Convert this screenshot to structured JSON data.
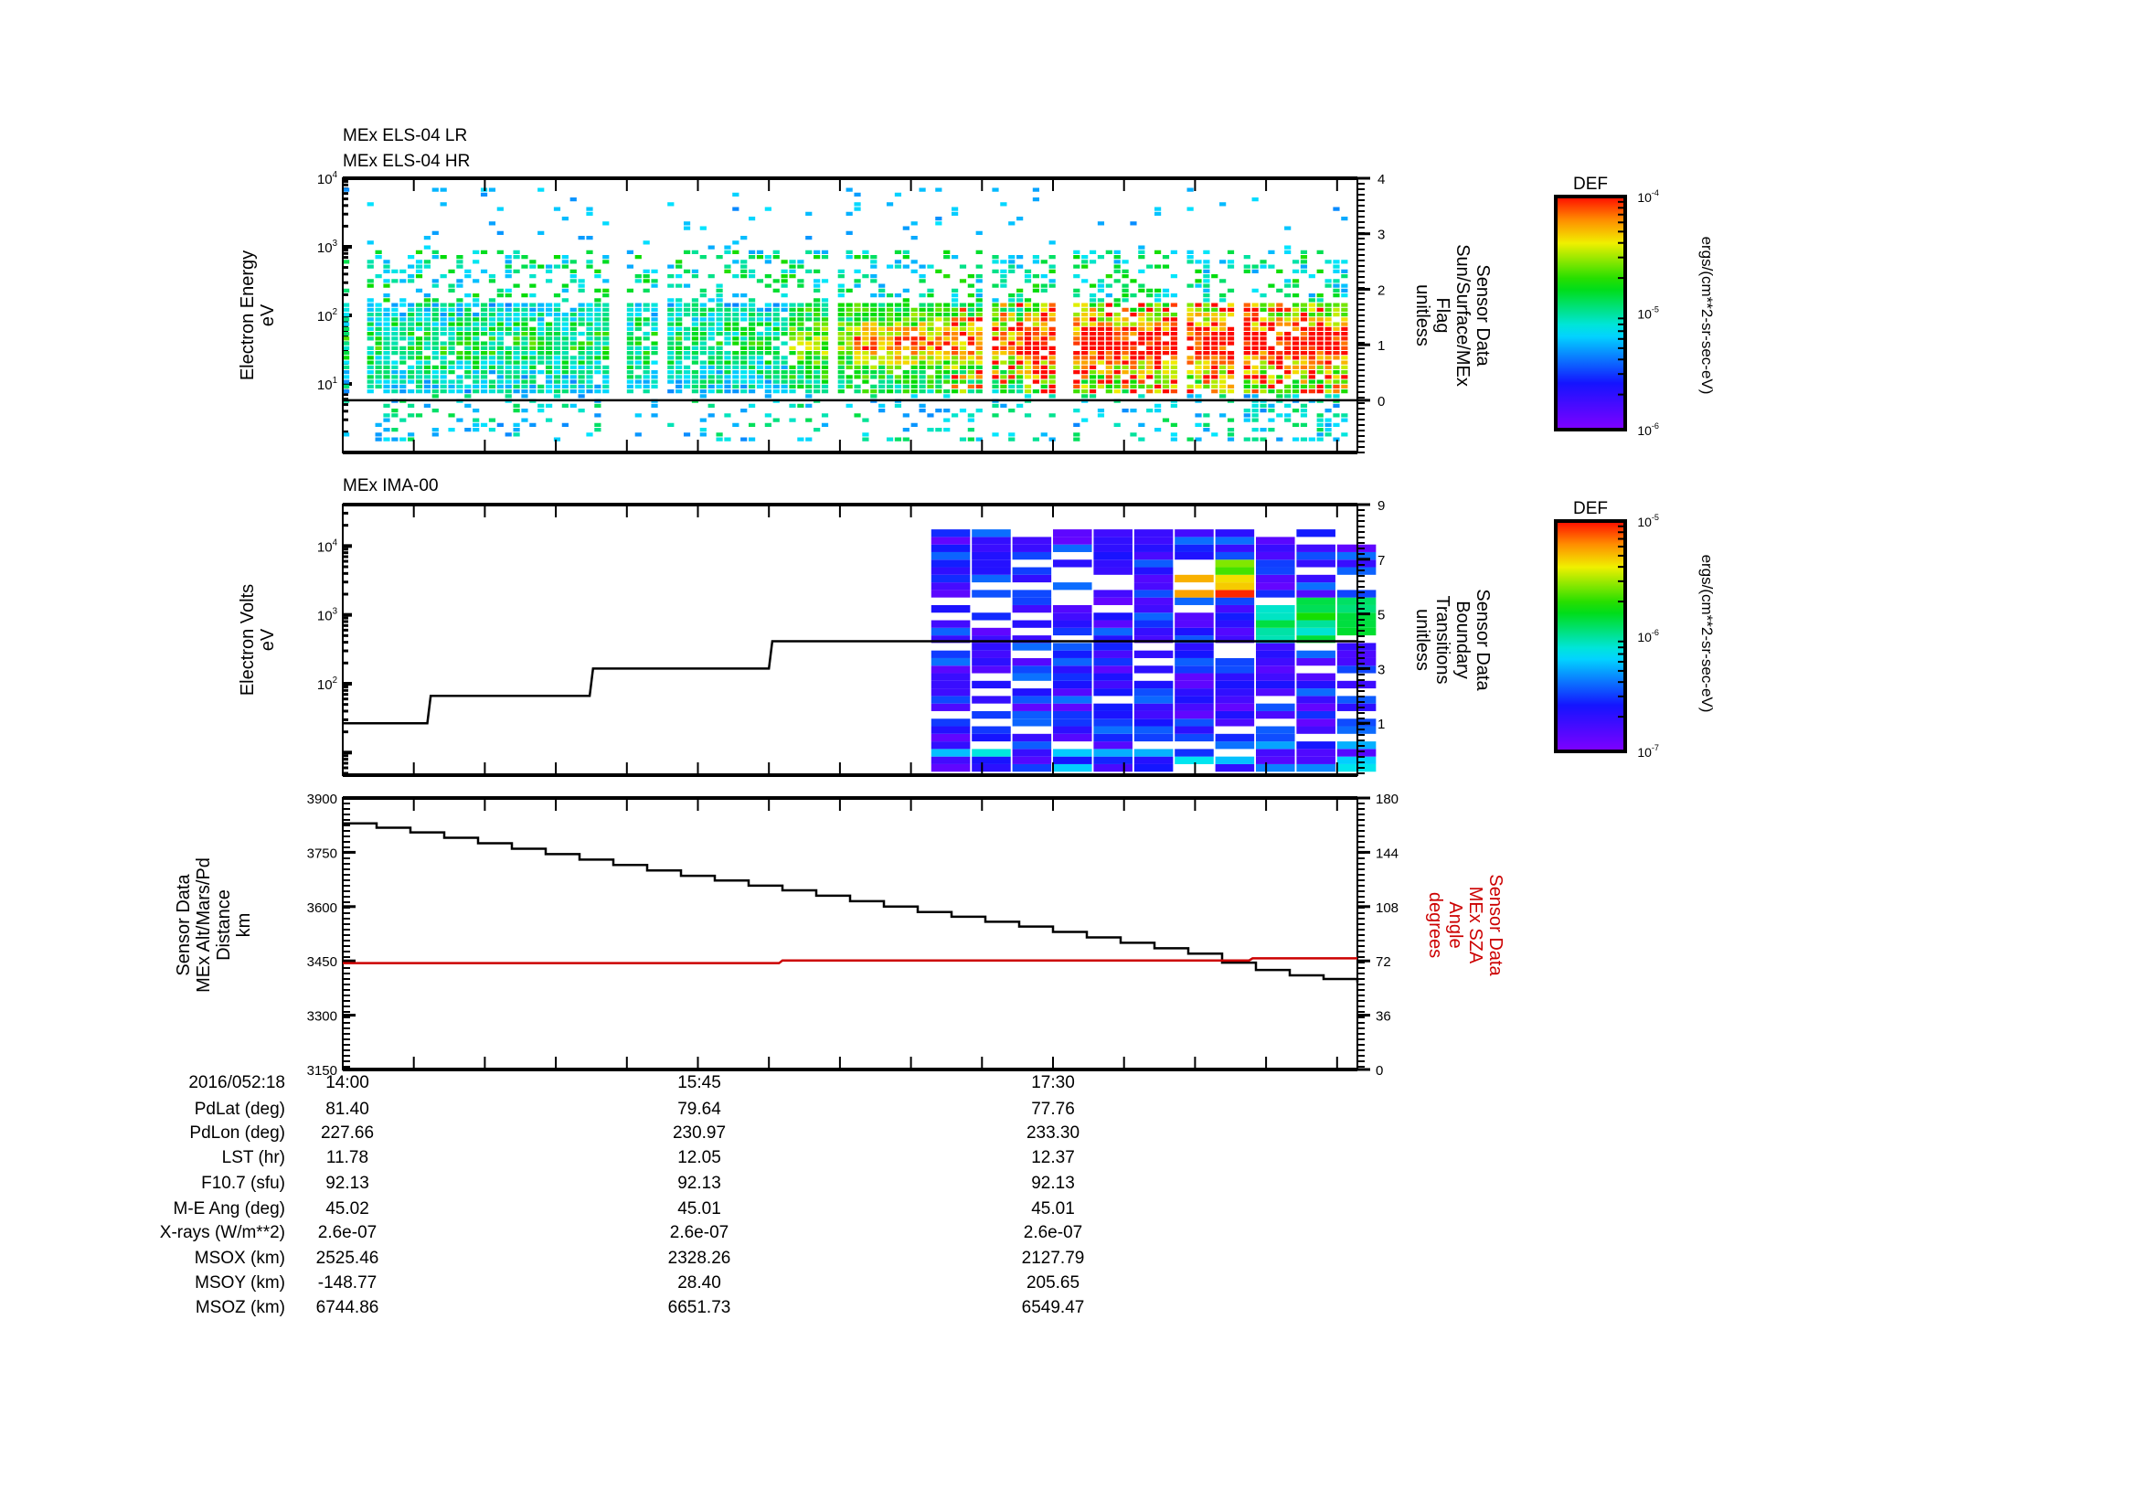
{
  "panels": {
    "p1_title_1": "MEx ELS-04 LR",
    "p1_title_2": "MEx ELS-04 HR",
    "p2_title": "MEx IMA-00"
  },
  "colors": {
    "axis": "#000000",
    "sza": "#cc0000"
  },
  "chart_data": [
    {
      "type": "heatmap",
      "name": "MEx ELS-04 LR / HR electron spectrogram",
      "title": [
        "MEx ELS-04 LR",
        "MEx ELS-04 HR"
      ],
      "ylabel": [
        "Electron Energy",
        "eV"
      ],
      "y_scale": "log",
      "ylim": [
        1,
        10000
      ],
      "y_ticks": [
        "10^1",
        "10^2",
        "10^3",
        "10^4"
      ],
      "y2label": [
        "Sensor Data",
        "Sun/Surface/MEx",
        "Flag",
        "unitless"
      ],
      "y2lim": [
        -0.94,
        4
      ],
      "y2_ticks": [
        "0",
        "1",
        "2",
        "3",
        "4"
      ],
      "overlay_line": {
        "name": "Sun/Surface/MEx Flag",
        "points": [
          [
            0,
            0
          ],
          [
            300,
            0
          ]
        ]
      },
      "colorbar": {
        "label": "DEF",
        "units": "ergs/(cm**2-sr-sec-eV)",
        "ticks": [
          "10^-4",
          "10^-5",
          "10^-6"
        ],
        "range": [
          1e-06,
          0.0001
        ]
      }
    },
    {
      "type": "heatmap",
      "name": "MEx IMA-00 ion spectrogram",
      "title": "MEx IMA-00",
      "ylabel": [
        "Electron Volts",
        "eV"
      ],
      "y_scale": "log",
      "ylim": [
        4.7,
        40000
      ],
      "y_ticks": [
        "10^2",
        "10^3",
        "10^4"
      ],
      "y2label": [
        "Sensor Data",
        "Boundary",
        "Transitions",
        "unitless"
      ],
      "y2lim": [
        -0.9,
        9
      ],
      "y2_ticks": [
        "1",
        "3",
        "5",
        "7",
        "9"
      ],
      "data_start_minute": 174,
      "overlay_line": {
        "name": "Boundary Transitions",
        "points": [
          [
            0,
            1
          ],
          [
            25,
            1
          ],
          [
            26,
            2
          ],
          [
            73,
            2
          ],
          [
            74,
            3
          ],
          [
            126,
            3
          ],
          [
            127,
            4
          ],
          [
            300,
            4
          ]
        ]
      },
      "colorbar": {
        "label": "DEF",
        "units": "ergs/(cm**2-sr-sec-eV)",
        "ticks": [
          "10^-5",
          "10^-6",
          "10^-7"
        ],
        "range": [
          1e-07,
          1e-05
        ]
      }
    },
    {
      "type": "line",
      "name": "Altitude and SZA",
      "ylabel": [
        "Sensor Data",
        "MEx Alt/Mars/Pd",
        "Distance",
        "km"
      ],
      "ylim": [
        3150,
        3900
      ],
      "y_ticks": [
        "3150",
        "3300",
        "3450",
        "3600",
        "3750",
        "3900"
      ],
      "y2label": [
        "Sensor Data",
        "MEx SZA",
        "Angle",
        "degrees"
      ],
      "y2lim": [
        0,
        180
      ],
      "y2_ticks": [
        "0",
        "36",
        "72",
        "108",
        "144",
        "180"
      ],
      "x_unit": "minutes after 2016/052 14:00",
      "xlim": [
        0,
        300
      ],
      "x_ticks": [
        "14:00",
        "15:45",
        "17:30"
      ],
      "series": [
        {
          "name": "MEx Alt/Mars/Pd Distance (km)",
          "axis": "left",
          "points": [
            [
              0,
              3830
            ],
            [
              10,
              3818
            ],
            [
              20,
              3805
            ],
            [
              30,
              3790
            ],
            [
              40,
              3775
            ],
            [
              50,
              3760
            ],
            [
              60,
              3745
            ],
            [
              70,
              3730
            ],
            [
              80,
              3715
            ],
            [
              90,
              3700
            ],
            [
              100,
              3685
            ],
            [
              110,
              3672
            ],
            [
              120,
              3658
            ],
            [
              130,
              3645
            ],
            [
              140,
              3630
            ],
            [
              150,
              3615
            ],
            [
              160,
              3600
            ],
            [
              170,
              3585
            ],
            [
              180,
              3572
            ],
            [
              190,
              3558
            ],
            [
              200,
              3545
            ],
            [
              210,
              3530
            ],
            [
              220,
              3515
            ],
            [
              230,
              3500
            ],
            [
              240,
              3485
            ],
            [
              250,
              3470
            ],
            [
              260,
              3445
            ],
            [
              270,
              3425
            ],
            [
              280,
              3410
            ],
            [
              290,
              3400
            ],
            [
              300,
              3390
            ]
          ]
        },
        {
          "name": "MEx SZA Angle (degrees)",
          "axis": "right",
          "points": [
            [
              0,
              70.5
            ],
            [
              129,
              70.5
            ],
            [
              130,
              72.3
            ],
            [
              268,
              72.3
            ],
            [
              269,
              73.7
            ],
            [
              300,
              73.7
            ]
          ]
        }
      ]
    }
  ],
  "ephemeris": {
    "time_label": "2016/052:18",
    "times": [
      "14:00",
      "15:45",
      "17:30"
    ],
    "rows": [
      {
        "label": "PdLat (deg)",
        "values": [
          "81.40",
          "79.64",
          "77.76"
        ]
      },
      {
        "label": "PdLon (deg)",
        "values": [
          "227.66",
          "230.97",
          "233.30"
        ]
      },
      {
        "label": "LST (hr)",
        "values": [
          "11.78",
          "12.05",
          "12.37"
        ]
      },
      {
        "label": "F10.7 (sfu)",
        "values": [
          "92.13",
          "92.13",
          "92.13"
        ]
      },
      {
        "label": "M-E Ang (deg)",
        "values": [
          "45.02",
          "45.01",
          "45.01"
        ]
      },
      {
        "label": "X-rays (W/m**2)",
        "values": [
          "2.6e-07",
          "2.6e-07",
          "2.6e-07"
        ]
      },
      {
        "label": "MSOX (km)",
        "values": [
          "2525.46",
          "2328.26",
          "2127.79"
        ]
      },
      {
        "label": "MSOY (km)",
        "values": [
          "-148.77",
          "28.40",
          "205.65"
        ]
      },
      {
        "label": "MSOZ (km)",
        "values": [
          "6744.86",
          "6651.73",
          "6549.47"
        ]
      }
    ]
  }
}
